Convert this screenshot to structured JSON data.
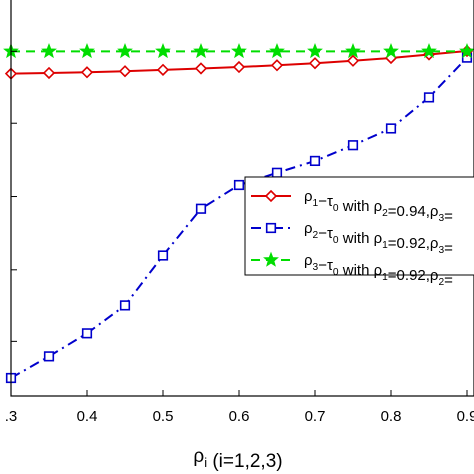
{
  "chart_data": {
    "type": "line",
    "xlabel": "ρ",
    "xlabel_sub": "i",
    "xlabel_rest": "(i=1,2,3)",
    "xlim": [
      0.3,
      0.9
    ],
    "ylim": [
      0,
      1
    ],
    "x_ticks": [
      0.3,
      0.4,
      0.5,
      0.6,
      0.7,
      0.8,
      0.9
    ],
    "x_tick_labels": [
      ".3",
      "0.4",
      "0.5",
      "0.6",
      "0.7",
      "0.8",
      "0.9"
    ],
    "y_ticks": [
      0.105,
      0.31,
      0.52,
      0.73,
      0.936
    ],
    "grid": false,
    "legend_position": "center-right",
    "x": [
      0.3,
      0.35,
      0.4,
      0.45,
      0.5,
      0.55,
      0.6,
      0.65,
      0.7,
      0.75,
      0.8,
      0.85,
      0.9
    ],
    "series": [
      {
        "color": "#dd0000",
        "marker": "diamond",
        "line_style": "solid",
        "legend": {
          "a": "ρ",
          "a_sub": "1",
          "b": "−τ",
          "b_sub": "0",
          "c": " with ρ",
          "c_sub": "2",
          "d": "=0.94,ρ",
          "d_sub": "3",
          "e": "="
        },
        "values": [
          0.872,
          0.874,
          0.876,
          0.879,
          0.883,
          0.887,
          0.891,
          0.896,
          0.902,
          0.909,
          0.917,
          0.927,
          0.937
        ]
      },
      {
        "color": "#0000cc",
        "marker": "square",
        "line_style": "dashdot",
        "legend": {
          "a": "ρ",
          "a_sub": "2",
          "b": "−τ",
          "b_sub": "0",
          "c": " with ρ",
          "c_sub": "1",
          "d": "=0.92,ρ",
          "d_sub": "3",
          "e": "="
        },
        "values": [
          0.0,
          0.062,
          0.128,
          0.208,
          0.351,
          0.485,
          0.553,
          0.588,
          0.622,
          0.667,
          0.715,
          0.804,
          0.918
        ]
      },
      {
        "color": "#00dd00",
        "marker": "star",
        "line_style": "dashed",
        "legend": {
          "a": "ρ",
          "a_sub": "3",
          "b": "−τ",
          "b_sub": "0",
          "c": " with ρ",
          "c_sub": "1",
          "d": "=0.92,ρ",
          "d_sub": "2",
          "e": "="
        },
        "values": [
          0.936,
          0.936,
          0.936,
          0.936,
          0.936,
          0.936,
          0.936,
          0.936,
          0.936,
          0.936,
          0.936,
          0.936,
          0.936
        ]
      }
    ]
  }
}
